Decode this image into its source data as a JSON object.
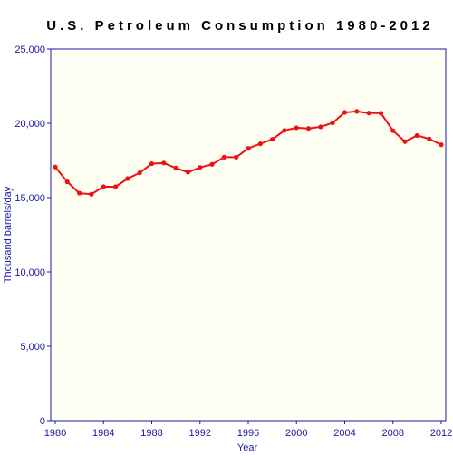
{
  "chart_data": {
    "type": "line",
    "title": "U.S. Petroleum Consumption 1980-2012",
    "xlabel": "Year",
    "ylabel": "Thousand barrels/day",
    "xlim": [
      1980,
      2012
    ],
    "ylim": [
      0,
      25000
    ],
    "x_ticks": [
      1980,
      1984,
      1988,
      1992,
      1996,
      2000,
      2004,
      2008,
      2012
    ],
    "x_tick_labels": [
      "1980",
      "1984",
      "1988",
      "1992",
      "1996",
      "2000",
      "2004",
      "2008",
      "2012"
    ],
    "y_ticks": [
      0,
      5000,
      10000,
      15000,
      20000,
      25000
    ],
    "y_tick_labels": [
      "0",
      "5,000",
      "10,000",
      "15,000",
      "20,000",
      "25,000"
    ],
    "grid": false,
    "colors": {
      "plot_background": "#fffff3",
      "axis": "#1a1aa6",
      "series": "#ee1111"
    },
    "series": [
      {
        "x": [
          1980,
          1981,
          1982,
          1983,
          1984,
          1985,
          1986,
          1987,
          1988,
          1989,
          1990,
          1991,
          1992,
          1993,
          1994,
          1995,
          1996,
          1997,
          1998,
          1999,
          2000,
          2001,
          2002,
          2003,
          2004,
          2005,
          2006,
          2007,
          2008,
          2009,
          2010,
          2011,
          2012
        ],
        "values": [
          17060,
          16060,
          15300,
          15230,
          15730,
          15730,
          16280,
          16670,
          17280,
          17330,
          16990,
          16710,
          17030,
          17240,
          17720,
          17720,
          18310,
          18620,
          18920,
          19520,
          19700,
          19650,
          19760,
          20030,
          20730,
          20800,
          20690,
          20680,
          19500,
          18770,
          19180,
          18950,
          18560
        ]
      }
    ]
  }
}
